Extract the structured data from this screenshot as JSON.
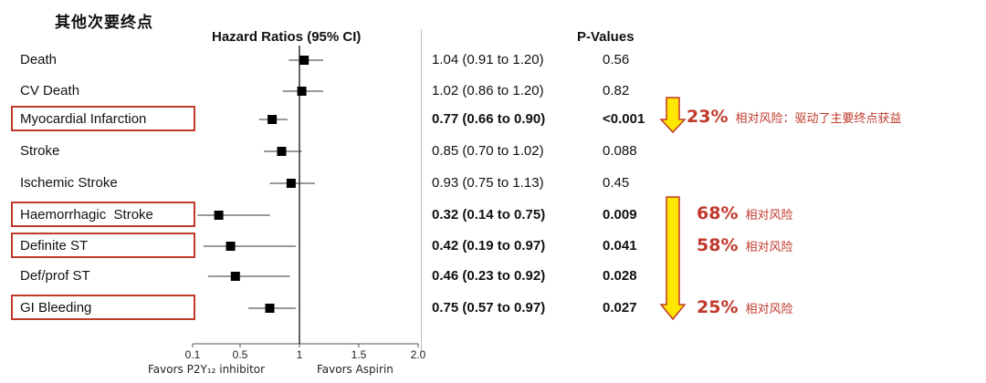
{
  "title": "其他次要终点",
  "headers": {
    "hazard_ratios": "Hazard Ratios (95% CI)",
    "p_values": "P-Values"
  },
  "chart_data": {
    "type": "forest",
    "reference_line": 1,
    "xlim": [
      0.1,
      2.0
    ],
    "x_ticks": [
      {
        "value": 0.1,
        "label": "0.1"
      },
      {
        "value": 0.5,
        "label": "0.5"
      },
      {
        "value": 1.0,
        "label": "1"
      },
      {
        "value": 1.5,
        "label": "1.5"
      },
      {
        "value": 2.0,
        "label": "2.0"
      }
    ],
    "favors_left": "Favors P2Y₁₂ inhibitor",
    "favors_right": "Favors Aspirin",
    "rows": [
      {
        "outcome": "Death",
        "hr": 1.04,
        "lo": 0.91,
        "hi": 1.2,
        "ci_text": "1.04 (0.91 to 1.20)",
        "p": "0.56",
        "bold": false,
        "highlight": false
      },
      {
        "outcome": "CV Death",
        "hr": 1.02,
        "lo": 0.86,
        "hi": 1.2,
        "ci_text": "1.02 (0.86 to 1.20)",
        "p": "0.82",
        "bold": false,
        "highlight": false
      },
      {
        "outcome": "Myocardial Infarction",
        "hr": 0.77,
        "lo": 0.66,
        "hi": 0.9,
        "ci_text": "0.77 (0.66 to 0.90)",
        "p": "<0.001",
        "bold": true,
        "highlight": true
      },
      {
        "outcome": "Stroke",
        "hr": 0.85,
        "lo": 0.7,
        "hi": 1.02,
        "ci_text": "0.85 (0.70 to 1.02)",
        "p": "0.088",
        "bold": false,
        "highlight": false
      },
      {
        "outcome": "Ischemic Stroke",
        "hr": 0.93,
        "lo": 0.75,
        "hi": 1.13,
        "ci_text": "0.93 (0.75 to 1.13)",
        "p": "0.45",
        "bold": false,
        "highlight": false
      },
      {
        "outcome": "Haemorrhagic  Stroke",
        "hr": 0.32,
        "lo": 0.14,
        "hi": 0.75,
        "ci_text": "0.32 (0.14 to 0.75)",
        "p": "0.009",
        "bold": true,
        "highlight": true
      },
      {
        "outcome": "Definite ST",
        "hr": 0.42,
        "lo": 0.19,
        "hi": 0.97,
        "ci_text": "0.42 (0.19 to 0.97)",
        "p": "0.041",
        "bold": true,
        "highlight": true
      },
      {
        "outcome": "Def/prof ST",
        "hr": 0.46,
        "lo": 0.23,
        "hi": 0.92,
        "ci_text": "0.46 (0.23 to 0.92)",
        "p": "0.028",
        "bold": true,
        "highlight": false
      },
      {
        "outcome": "GI Bleeding",
        "hr": 0.75,
        "lo": 0.57,
        "hi": 0.97,
        "ci_text": "0.75 (0.57 to 0.97)",
        "p": "0.027",
        "bold": true,
        "highlight": true
      }
    ]
  },
  "annotations": [
    {
      "pct": "23%",
      "text": "相对风险：驱动了主要终点获益"
    },
    {
      "pct": "68%",
      "text": "相对风险"
    },
    {
      "pct": "58%",
      "text": "相对风险"
    },
    {
      "pct": "25%",
      "text": "相对风险"
    }
  ],
  "colors": {
    "highlight": "#c0392b",
    "arrow_fill": "#ffe600",
    "arrow_stroke": "#c0392b"
  }
}
